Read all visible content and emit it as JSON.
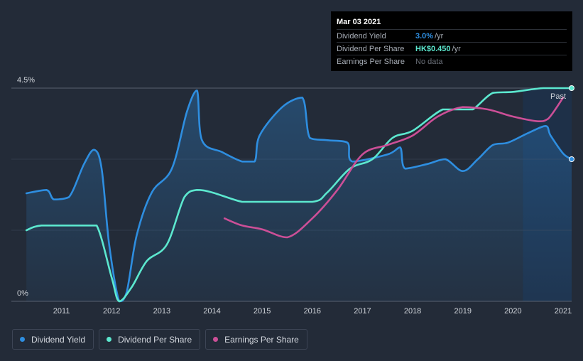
{
  "chart_data": {
    "type": "line",
    "ylim": [
      0,
      4.5
    ],
    "y_tick_labels": [
      "4.5%",
      "0%"
    ],
    "x_tick_labels": [
      "2011",
      "2012",
      "2013",
      "2014",
      "2015",
      "2016",
      "2017",
      "2018",
      "2019",
      "2020",
      "2021"
    ],
    "past_label": "Past",
    "series": [
      {
        "name": "Dividend Yield",
        "color": "#2e8ee0",
        "points": [
          [
            2010.3,
            2.28
          ],
          [
            2010.7,
            2.35
          ],
          [
            2010.85,
            2.15
          ],
          [
            2011.15,
            2.2
          ],
          [
            2011.45,
            2.9
          ],
          [
            2011.65,
            3.2
          ],
          [
            2011.8,
            2.8
          ],
          [
            2011.95,
            1.2
          ],
          [
            2012.15,
            0.0
          ],
          [
            2012.3,
            0.2
          ],
          [
            2012.5,
            1.4
          ],
          [
            2012.8,
            2.3
          ],
          [
            2013.2,
            2.8
          ],
          [
            2013.5,
            4.0
          ],
          [
            2013.7,
            4.45
          ],
          [
            2013.8,
            3.4
          ],
          [
            2014.2,
            3.15
          ],
          [
            2014.6,
            2.95
          ],
          [
            2014.85,
            2.95
          ],
          [
            2014.95,
            3.5
          ],
          [
            2015.4,
            4.1
          ],
          [
            2015.8,
            4.3
          ],
          [
            2015.95,
            3.45
          ],
          [
            2016.3,
            3.4
          ],
          [
            2016.7,
            3.35
          ],
          [
            2016.8,
            2.95
          ],
          [
            2017.5,
            3.1
          ],
          [
            2017.75,
            3.25
          ],
          [
            2017.85,
            2.8
          ],
          [
            2018.3,
            2.9
          ],
          [
            2018.65,
            3.0
          ],
          [
            2019.0,
            2.75
          ],
          [
            2019.3,
            3.0
          ],
          [
            2019.6,
            3.3
          ],
          [
            2019.9,
            3.35
          ],
          [
            2020.3,
            3.55
          ],
          [
            2020.65,
            3.7
          ],
          [
            2020.75,
            3.5
          ],
          [
            2021.0,
            3.12
          ],
          [
            2021.17,
            3.0
          ]
        ]
      },
      {
        "name": "Dividend Per Share",
        "color": "#5ce8cf",
        "points": [
          [
            2010.3,
            1.5
          ],
          [
            2010.6,
            1.6
          ],
          [
            2011.4,
            1.6
          ],
          [
            2011.7,
            1.6
          ],
          [
            2012.0,
            0.5
          ],
          [
            2012.15,
            0.0
          ],
          [
            2012.4,
            0.3
          ],
          [
            2012.7,
            0.85
          ],
          [
            2013.1,
            1.2
          ],
          [
            2013.45,
            2.2
          ],
          [
            2013.7,
            2.35
          ],
          [
            2014.0,
            2.3
          ],
          [
            2014.6,
            2.1
          ],
          [
            2015.0,
            2.1
          ],
          [
            2016.0,
            2.1
          ],
          [
            2016.3,
            2.3
          ],
          [
            2016.75,
            2.8
          ],
          [
            2017.2,
            3.0
          ],
          [
            2017.6,
            3.45
          ],
          [
            2018.0,
            3.6
          ],
          [
            2018.6,
            4.05
          ],
          [
            2019.0,
            4.05
          ],
          [
            2019.2,
            4.05
          ],
          [
            2019.6,
            4.4
          ],
          [
            2020.0,
            4.42
          ],
          [
            2020.6,
            4.5
          ],
          [
            2021.17,
            4.5
          ]
        ]
      },
      {
        "name": "Earnings Per Share",
        "color": "#cc4f97",
        "points": [
          [
            2014.25,
            1.75
          ],
          [
            2014.6,
            1.6
          ],
          [
            2015.0,
            1.52
          ],
          [
            2015.5,
            1.35
          ],
          [
            2016.0,
            1.75
          ],
          [
            2016.5,
            2.35
          ],
          [
            2017.0,
            3.1
          ],
          [
            2017.5,
            3.3
          ],
          [
            2018.0,
            3.5
          ],
          [
            2018.5,
            3.9
          ],
          [
            2019.0,
            4.1
          ],
          [
            2019.5,
            4.05
          ],
          [
            2020.0,
            3.9
          ],
          [
            2020.5,
            3.8
          ],
          [
            2020.7,
            3.85
          ],
          [
            2021.0,
            4.3
          ]
        ]
      }
    ]
  },
  "tooltip": {
    "date": "Mar 03 2021",
    "rows": [
      {
        "label": "Dividend Yield",
        "value": "3.0%",
        "unit": " /yr",
        "color": "#2e8ee0"
      },
      {
        "label": "Dividend Per Share",
        "value": "HK$0.450",
        "unit": " /yr",
        "color": "#5ce8cf"
      },
      {
        "label": "Earnings Per Share",
        "value": "",
        "unit": "",
        "nodata": "No data"
      }
    ]
  },
  "legend": [
    {
      "label": "Dividend Yield",
      "color": "#2e8ee0"
    },
    {
      "label": "Dividend Per Share",
      "color": "#5ce8cf"
    },
    {
      "label": "Earnings Per Share",
      "color": "#cc4f97"
    }
  ]
}
